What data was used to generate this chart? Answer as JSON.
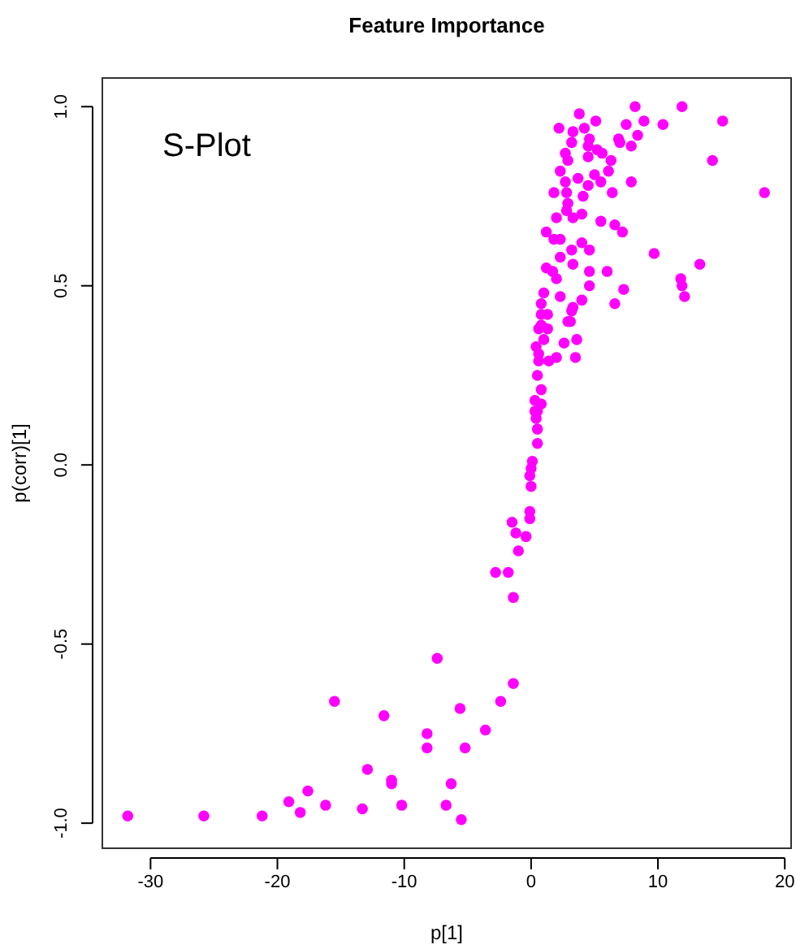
{
  "chart_data": {
    "type": "scatter",
    "title": "Feature Importance",
    "xlabel": "p[1]",
    "ylabel": "p(corr)[1]",
    "annotations": [
      "S-Plot"
    ],
    "xlim": [
      -33.8,
      20.5
    ],
    "ylim": [
      -1.07,
      1.08
    ],
    "xticks": [
      -30,
      -20,
      -10,
      0,
      10,
      20
    ],
    "yticks": [
      {
        "value": -1,
        "label": "-1.0"
      },
      {
        "value": -0.5,
        "label": "-0.5"
      },
      {
        "value": 0,
        "label": "0.0"
      },
      {
        "value": 0.5,
        "label": "0.5"
      },
      {
        "value": 1,
        "label": "1.0"
      }
    ],
    "grid": false,
    "marker": "circle",
    "series": [
      {
        "color": "#ff00ff",
        "x": [
          -31.8,
          -25.8,
          -21.2,
          -19.1,
          -18.2,
          -17.6,
          -16.2,
          -15.5,
          -13.3,
          -12.9,
          -11.6,
          -11.0,
          -11.0,
          -10.2,
          -8.2,
          -8.2,
          -7.4,
          -6.7,
          -6.3,
          -5.6,
          -5.5,
          -5.2,
          -3.6,
          -2.4,
          -1.4,
          -1.4,
          -2.8,
          -1.8,
          -1.0,
          -1.5,
          -1.2,
          -0.4,
          -0.1,
          -0.1,
          0,
          -0.1,
          0.1,
          0,
          0.5,
          0.5,
          0.4,
          0.3,
          0.5,
          0.8,
          0.3,
          0.8,
          0.5,
          0.6,
          0.6,
          1.4,
          2.0,
          2.6,
          3.5,
          3.6,
          0.4,
          1.0,
          0.6,
          1.3,
          2.9,
          0.8,
          3.3,
          3.8,
          5.1,
          8.2,
          11.9,
          15.1,
          2.2,
          7.5,
          8.9,
          10.4,
          3.3,
          4.2,
          8.4,
          3.2,
          4.6,
          6.9,
          7.0,
          7.9,
          4.5,
          5.2,
          2.7,
          4.5,
          5.6,
          6.3,
          2.9,
          14.3,
          2.3,
          6.1,
          3.7,
          5.0,
          5.5,
          2.7,
          7.9,
          4.5,
          18.4,
          1.8,
          2.8,
          6.4,
          4.1,
          2.9,
          2.8,
          4.0,
          2.0,
          3.3,
          5.5,
          6.6,
          1.2,
          1.8,
          2.3,
          7.2,
          3.2,
          4.0,
          4.6,
          9.7,
          2.3,
          3.3,
          13.3,
          1.2,
          1.7,
          4.6,
          6.0,
          2.0,
          11.8,
          4.6,
          11.9,
          7.3,
          1.0,
          2.3,
          12.1,
          4.0,
          6.6,
          0.8,
          3.2,
          1.3,
          0.8,
          3.1
        ],
        "values": [
          -0.98,
          -0.98,
          -0.98,
          -0.94,
          -0.97,
          -0.91,
          -0.95,
          -0.66,
          -0.96,
          -0.85,
          -0.7,
          -0.88,
          -0.89,
          -0.95,
          -0.75,
          -0.79,
          -0.54,
          -0.95,
          -0.89,
          -0.68,
          -0.99,
          -0.79,
          -0.74,
          -0.66,
          -0.61,
          -0.37,
          -0.3,
          -0.3,
          -0.24,
          -0.16,
          -0.19,
          -0.2,
          -0.13,
          -0.15,
          -0.06,
          -0.03,
          0.01,
          -0.01,
          0.06,
          0.1,
          0.13,
          0.15,
          0.15,
          0.17,
          0.18,
          0.21,
          0.25,
          0.29,
          0.31,
          0.29,
          0.3,
          0.34,
          0.3,
          0.35,
          0.33,
          0.35,
          0.38,
          0.38,
          0.4,
          0.42,
          0.44,
          0.98,
          0.96,
          1.0,
          1.0,
          0.96,
          0.94,
          0.95,
          0.96,
          0.95,
          0.93,
          0.94,
          0.92,
          0.9,
          0.91,
          0.91,
          0.9,
          0.89,
          0.89,
          0.88,
          0.87,
          0.86,
          0.87,
          0.85,
          0.85,
          0.85,
          0.82,
          0.82,
          0.8,
          0.81,
          0.79,
          0.79,
          0.79,
          0.78,
          0.76,
          0.76,
          0.76,
          0.76,
          0.75,
          0.73,
          0.71,
          0.7,
          0.69,
          0.69,
          0.68,
          0.67,
          0.65,
          0.63,
          0.63,
          0.65,
          0.6,
          0.62,
          0.6,
          0.59,
          0.58,
          0.56,
          0.56,
          0.55,
          0.54,
          0.54,
          0.54,
          0.52,
          0.52,
          0.5,
          0.5,
          0.49,
          0.48,
          0.47,
          0.47,
          0.46,
          0.45,
          0.45,
          0.43,
          0.42,
          0.39,
          0.4
        ]
      }
    ]
  }
}
